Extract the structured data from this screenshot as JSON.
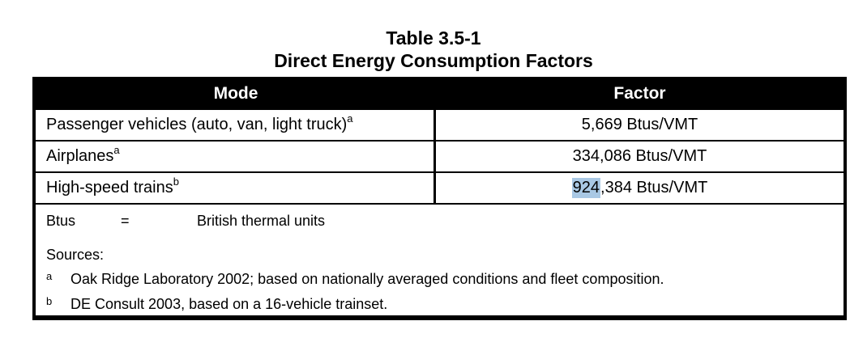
{
  "title": {
    "line1": "Table 3.5-1",
    "line2": "Direct Energy Consumption Factors"
  },
  "table": {
    "columns": [
      "Mode",
      "Factor"
    ],
    "rows": [
      {
        "mode": "Passenger vehicles (auto, van, light truck)",
        "mode_sup": "a",
        "factor": "5,669 Btus/VMT"
      },
      {
        "mode": "Airplanes",
        "mode_sup": "a",
        "factor": "334,086 Btus/VMT"
      },
      {
        "mode": "High-speed trains",
        "mode_sup": "b",
        "factor_highlight": "924",
        "factor_rest": ",384 Btus/VMT"
      }
    ]
  },
  "footer": {
    "abbreviation": {
      "term": "Btus",
      "equals": "=",
      "definition": "British thermal units"
    },
    "sources_label": "Sources:",
    "footnotes": [
      {
        "marker": "a",
        "text": "Oak Ridge Laboratory 2002; based on nationally averaged conditions and fleet composition."
      },
      {
        "marker": "b",
        "text": "DE Consult 2003, based on a 16-vehicle trainset."
      }
    ]
  },
  "colors": {
    "highlight": "#a9c8e4",
    "header_bg": "#000000",
    "header_text": "#ffffff"
  }
}
